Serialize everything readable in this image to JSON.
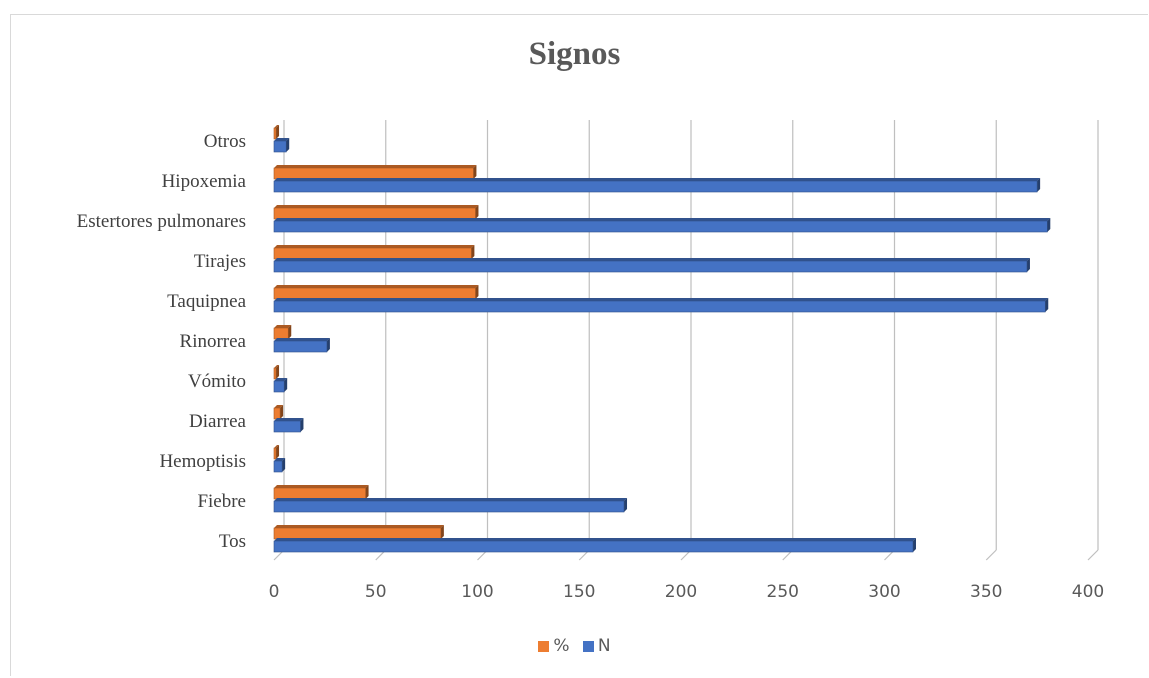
{
  "chart_data": {
    "type": "bar",
    "orientation": "horizontal",
    "style": "3d",
    "title": "Signos",
    "xlabel": "",
    "ylabel": "",
    "categories": [
      "Tos",
      "Fiebre",
      "Hemoptisis",
      "Diarrea",
      "Vómito",
      "Rinorrea",
      "Taquipnea",
      "Tirajes",
      "Estertores pulmonares",
      "Hipoxemia",
      "Otros"
    ],
    "series": [
      {
        "name": "%",
        "color": "#ed7d31",
        "values": [
          82,
          45,
          1,
          3,
          1,
          7,
          99,
          97,
          99,
          98,
          1
        ]
      },
      {
        "name": "N",
        "color": "#4472c4",
        "values": [
          314,
          172,
          4,
          13,
          5,
          26,
          379,
          370,
          380,
          375,
          6
        ]
      }
    ],
    "xlim": [
      0,
      400
    ],
    "xticks": [
      "0",
      "50",
      "100",
      "150",
      "200",
      "250",
      "300",
      "350",
      "400"
    ],
    "grid": true,
    "legend_position": "bottom"
  }
}
